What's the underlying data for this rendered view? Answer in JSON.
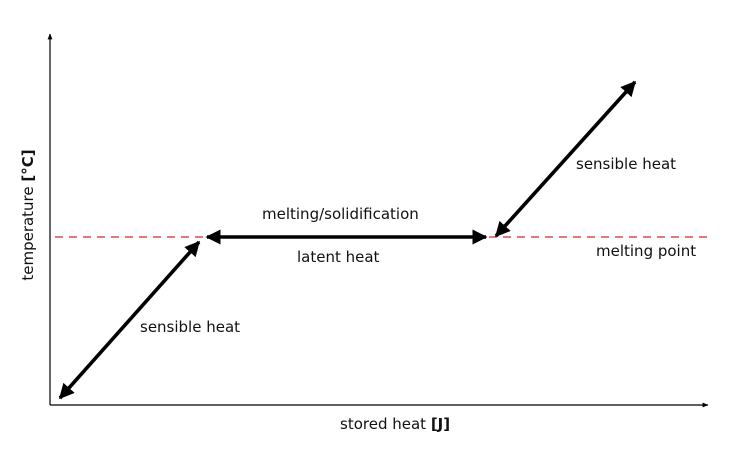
{
  "axes": {
    "x_label": "stored heat",
    "x_unit": "[J]",
    "y_label": "temperature",
    "y_unit": "[°C]"
  },
  "labels": {
    "sensible_heat_low": "sensible heat",
    "melting_solidification": "melting/solidification",
    "latent_heat": "latent heat",
    "sensible_heat_high": "sensible heat",
    "melting_point": "melting point"
  },
  "colors": {
    "melting_point_line": "#d62728",
    "arrows": "#000000",
    "axes": "#000000"
  }
}
